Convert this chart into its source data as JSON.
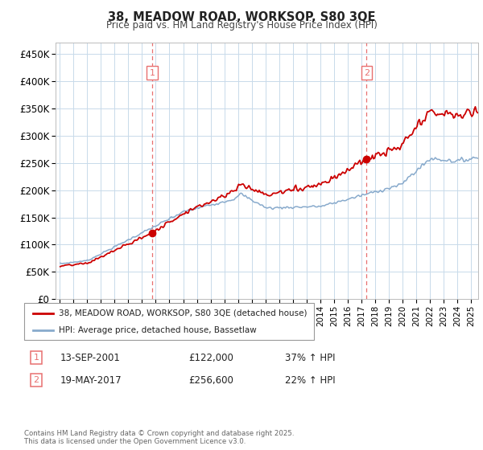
{
  "title_line1": "38, MEADOW ROAD, WORKSOP, S80 3QE",
  "title_line2": "Price paid vs. HM Land Registry's House Price Index (HPI)",
  "legend_label1": "38, MEADOW ROAD, WORKSOP, S80 3QE (detached house)",
  "legend_label2": "HPI: Average price, detached house, Bassetlaw",
  "sale1_label": "1",
  "sale1_date": "13-SEP-2001",
  "sale1_price": "£122,000",
  "sale1_hpi": "37% ↑ HPI",
  "sale2_label": "2",
  "sale2_date": "19-MAY-2017",
  "sale2_price": "£256,600",
  "sale2_hpi": "22% ↑ HPI",
  "footer": "Contains HM Land Registry data © Crown copyright and database right 2025.\nThis data is licensed under the Open Government Licence v3.0.",
  "line_color_property": "#cc0000",
  "line_color_hpi": "#88aacc",
  "vline_color": "#e87070",
  "background_color": "#ffffff",
  "grid_color": "#c8daea",
  "ylim": [
    0,
    470000
  ],
  "yticks": [
    0,
    50000,
    100000,
    150000,
    200000,
    250000,
    300000,
    350000,
    400000,
    450000
  ],
  "sale1_year": 2001.75,
  "sale1_value": 122000,
  "sale2_year": 2017.37,
  "sale2_value": 256600,
  "xmin": 1994.7,
  "xmax": 2025.5
}
